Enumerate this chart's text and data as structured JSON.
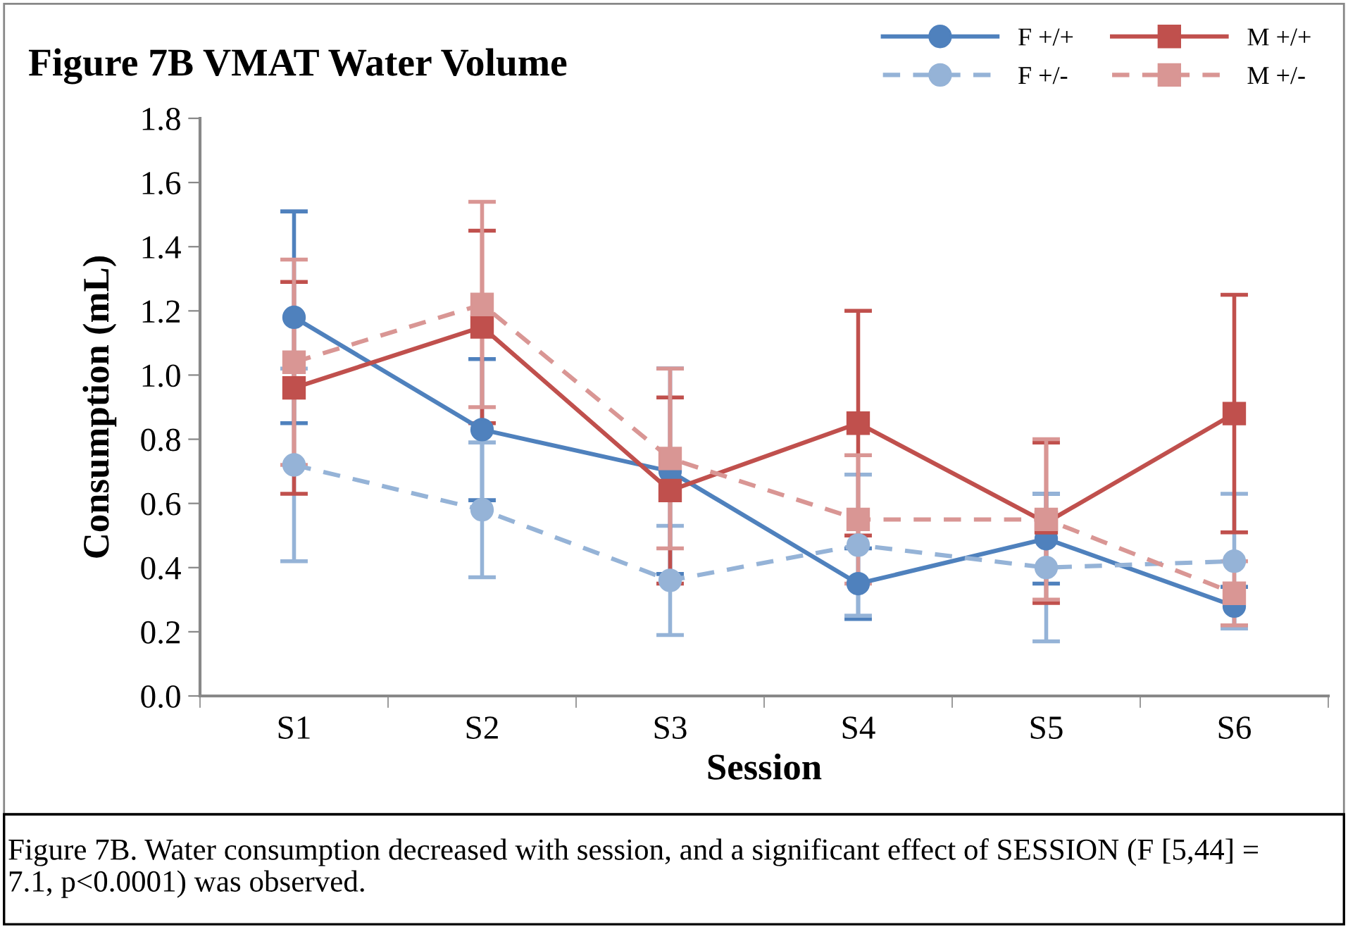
{
  "chart_data": {
    "type": "line",
    "title": "Figure 7B VMAT Water Volume",
    "xlabel": "Session",
    "ylabel": "Consumption (mL)",
    "categories": [
      "S1",
      "S2",
      "S3",
      "S4",
      "S5",
      "S6"
    ],
    "ylim": [
      0,
      1.8
    ],
    "yticks": [
      {
        "value": 0,
        "label": "0.0"
      },
      {
        "value": 0.2,
        "label": "0.2"
      },
      {
        "value": 0.4,
        "label": "0.4"
      },
      {
        "value": 0.6,
        "label": "0.6"
      },
      {
        "value": 0.8,
        "label": "0.8"
      },
      {
        "value": 1.0,
        "label": "1.0"
      },
      {
        "value": 1.2,
        "label": "1.2"
      },
      {
        "value": 1.4,
        "label": "1.4"
      },
      {
        "value": 1.6,
        "label": "1.6"
      },
      {
        "value": 1.8,
        "label": "1.8"
      }
    ],
    "grid": false,
    "legend": "top right",
    "series": [
      {
        "name": "F +/+",
        "color": "#4f81bd",
        "marker": "circle",
        "line_style": "solid",
        "values": [
          1.18,
          0.83,
          0.7,
          0.35,
          0.49,
          0.28
        ],
        "errors": [
          0.33,
          0.22,
          0.32,
          0.11,
          0.14,
          0.06
        ]
      },
      {
        "name": "F +/-",
        "color": "#95b3d7",
        "marker": "circle",
        "line_style": "dashed",
        "values": [
          0.72,
          0.58,
          0.36,
          0.47,
          0.4,
          0.42
        ],
        "errors": [
          0.3,
          0.21,
          0.17,
          0.22,
          0.23,
          0.21
        ]
      },
      {
        "name": "M +/+",
        "color": "#c0504d",
        "marker": "square",
        "line_style": "solid",
        "values": [
          0.96,
          1.15,
          0.64,
          0.85,
          0.54,
          0.88
        ],
        "errors": [
          0.33,
          0.3,
          0.29,
          0.35,
          0.25,
          0.37
        ]
      },
      {
        "name": "M +/-",
        "color": "#d99694",
        "marker": "square",
        "line_style": "dashed",
        "values": [
          1.04,
          1.22,
          0.74,
          0.55,
          0.55,
          0.32
        ],
        "errors": [
          0.32,
          0.32,
          0.28,
          0.2,
          0.25,
          0.1
        ]
      }
    ],
    "annotations": [
      "Figure 7B. Water consumption decreased with session, and a significant effect of SESSION (F [5,44] = 7.1, p<0.0001) was observed."
    ]
  }
}
